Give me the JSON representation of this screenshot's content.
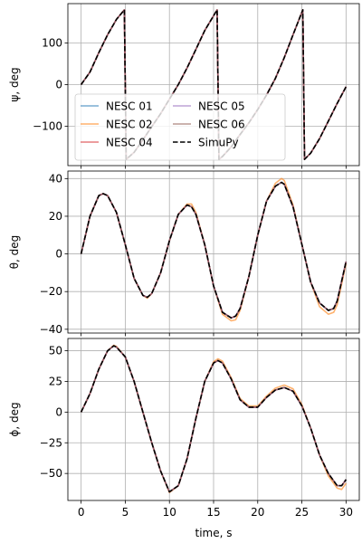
{
  "chart_data": {
    "type": "line",
    "xlabel": "time, s",
    "xlim": [
      -1.5,
      31.5
    ],
    "xticks": [
      0,
      5,
      10,
      15,
      20,
      25,
      30
    ],
    "xtick_labels": [
      "0",
      "5",
      "10",
      "15",
      "20",
      "25",
      "30"
    ],
    "grid": true,
    "legend": {
      "placement": "lower-left (top panel)",
      "columns": 2
    },
    "series_styles": [
      {
        "name": "NESC 01",
        "color": "#1f77b4",
        "dash": "solid",
        "alpha": 0.6
      },
      {
        "name": "NESC 02",
        "color": "#ff7f0e",
        "dash": "solid",
        "alpha": 0.6
      },
      {
        "name": "NESC 04",
        "color": "#d62728",
        "dash": "solid",
        "alpha": 0.6
      },
      {
        "name": "NESC 05",
        "color": "#9467bd",
        "dash": "solid",
        "alpha": 0.6
      },
      {
        "name": "NESC 06",
        "color": "#8c564b",
        "dash": "solid",
        "alpha": 0.6
      },
      {
        "name": "SimuPy",
        "color": "#000000",
        "dash": "dashed",
        "alpha": 1.0
      }
    ],
    "panels": [
      {
        "ylabel": "ψ, deg",
        "ylim": [
          -195,
          195
        ],
        "yticks": [
          -100,
          0,
          100
        ],
        "ytick_labels": [
          "−100",
          "0",
          "100"
        ],
        "x": [
          0,
          1,
          2,
          3,
          4,
          4.9,
          5.1,
          6,
          7,
          8,
          9,
          10,
          11,
          12,
          13,
          14,
          15.4,
          15.6,
          16,
          17,
          18,
          19,
          20,
          21,
          22,
          23,
          24,
          25.1,
          25.3,
          26,
          27,
          28,
          29,
          30
        ],
        "series": [
          {
            "name": "NESC 01",
            "values": [
              0,
              30,
              77,
              120,
              157,
              180,
              -180,
              -163,
              -133,
              -101,
              -70,
              -35,
              0,
              40,
              85,
              130,
              180,
              -180,
              -173,
              -150,
              -120,
              -92,
              -60,
              -25,
              15,
              65,
              120,
              180,
              -180,
              -165,
              -130,
              -88,
              -45,
              -5
            ]
          },
          {
            "name": "NESC 02",
            "values": [
              0,
              30,
              77,
              120,
              157,
              180,
              -180,
              -163,
              -133,
              -101,
              -70,
              -35,
              0,
              40,
              85,
              130,
              180,
              -180,
              -173,
              -150,
              -120,
              -92,
              -60,
              -25,
              15,
              65,
              120,
              180,
              -180,
              -165,
              -130,
              -88,
              -45,
              -5
            ]
          },
          {
            "name": "NESC 04",
            "values": [
              0,
              30,
              77,
              120,
              157,
              180,
              -180,
              -163,
              -133,
              -101,
              -70,
              -35,
              0,
              40,
              85,
              130,
              180,
              -180,
              -173,
              -150,
              -120,
              -92,
              -60,
              -25,
              15,
              65,
              120,
              180,
              -180,
              -165,
              -130,
              -88,
              -45,
              -5
            ]
          },
          {
            "name": "NESC 05",
            "values": [
              0,
              30,
              77,
              120,
              157,
              180,
              -180,
              -163,
              -133,
              -101,
              -70,
              -35,
              0,
              40,
              85,
              130,
              180,
              -180,
              -173,
              -150,
              -120,
              -92,
              -60,
              -25,
              15,
              65,
              120,
              180,
              -180,
              -165,
              -130,
              -88,
              -45,
              -5
            ]
          },
          {
            "name": "NESC 06",
            "values": [
              0,
              30,
              77,
              120,
              157,
              180,
              -180,
              -163,
              -133,
              -101,
              -70,
              -35,
              0,
              40,
              85,
              130,
              180,
              -180,
              -173,
              -150,
              -120,
              -92,
              -60,
              -25,
              15,
              65,
              120,
              180,
              -180,
              -165,
              -130,
              -88,
              -45,
              -5
            ]
          },
          {
            "name": "SimuPy",
            "values": [
              0,
              30,
              77,
              120,
              157,
              180,
              -180,
              -163,
              -133,
              -101,
              -70,
              -35,
              0,
              40,
              85,
              130,
              180,
              -180,
              -173,
              -150,
              -120,
              -92,
              -60,
              -25,
              15,
              65,
              120,
              180,
              -180,
              -165,
              -130,
              -88,
              -45,
              -5
            ]
          }
        ]
      },
      {
        "ylabel": "θ, deg",
        "ylim": [
          -42,
          44
        ],
        "yticks": [
          -40,
          -20,
          0,
          20,
          40
        ],
        "ytick_labels": [
          "−40",
          "−20",
          "0",
          "20",
          "40"
        ],
        "x": [
          0,
          1,
          2,
          2.5,
          3,
          4,
          5,
          6,
          7,
          7.5,
          8,
          9,
          10,
          11,
          12,
          12.5,
          13,
          14,
          15,
          16,
          17,
          17.5,
          18,
          19,
          20,
          21,
          22,
          22.7,
          23,
          24,
          25,
          26,
          27,
          28,
          28.6,
          29,
          30
        ],
        "series": [
          {
            "name": "NESC 01",
            "values": [
              0,
              20,
              31,
              32,
              31,
              22,
              5,
              -13,
              -22,
              -23,
              -21,
              -10,
              7,
              21,
              26,
              25,
              21,
              5,
              -17,
              -31,
              -34,
              -33,
              -29,
              -12,
              10,
              28,
              36,
              38,
              37,
              25,
              5,
              -15,
              -26,
              -30,
              -29,
              -25,
              -4
            ]
          },
          {
            "name": "NESC 02",
            "values": [
              0,
              20,
              31,
              32,
              31,
              22,
              5,
              -13,
              -22,
              -23.5,
              -21,
              -10,
              7,
              21,
              26.5,
              26.5,
              22,
              5,
              -17,
              -32,
              -35.5,
              -35,
              -30,
              -12,
              10,
              28,
              37.5,
              40,
              39,
              26,
              5,
              -15,
              -28,
              -32,
              -31,
              -27,
              -5
            ]
          },
          {
            "name": "NESC 04",
            "values": [
              0,
              20,
              31,
              32,
              31,
              22,
              5,
              -13,
              -22,
              -23,
              -21,
              -10,
              7,
              21,
              26,
              25,
              21,
              5,
              -17,
              -31,
              -34,
              -33,
              -29,
              -12,
              10,
              28,
              36,
              38,
              37,
              25,
              5,
              -15,
              -26,
              -30,
              -29,
              -25,
              -4
            ]
          },
          {
            "name": "NESC 05",
            "values": [
              0,
              20,
              31,
              32,
              31,
              22,
              5,
              -13,
              -22,
              -23,
              -21,
              -10,
              7,
              21,
              26,
              25,
              21,
              5,
              -17,
              -31,
              -34,
              -33,
              -29,
              -12,
              10,
              28,
              36,
              38,
              37,
              25,
              5,
              -15,
              -26,
              -30,
              -29,
              -25,
              -4
            ]
          },
          {
            "name": "NESC 06",
            "values": [
              0,
              20,
              31,
              32,
              31,
              22,
              5,
              -13,
              -22,
              -23,
              -21,
              -10,
              7,
              21,
              26,
              25,
              21,
              5,
              -17,
              -31,
              -34,
              -33,
              -29,
              -12,
              10,
              28,
              36,
              38,
              37,
              25,
              5,
              -15,
              -26,
              -30,
              -29,
              -25,
              -4
            ]
          },
          {
            "name": "SimuPy",
            "values": [
              0,
              20,
              31,
              32,
              31,
              22,
              5,
              -13,
              -22,
              -23,
              -21,
              -10,
              7,
              21,
              26,
              25,
              21,
              5,
              -17,
              -31,
              -34,
              -33,
              -29,
              -12,
              10,
              28,
              36,
              38,
              37,
              25,
              5,
              -15,
              -26,
              -30,
              -29,
              -25,
              -4
            ]
          }
        ]
      },
      {
        "ylabel": "ϕ, deg",
        "ylim": [
          -72,
          60
        ],
        "yticks": [
          -50,
          -25,
          0,
          25,
          50
        ],
        "ytick_labels": [
          "−50",
          "−25",
          "0",
          "25",
          "50"
        ],
        "x": [
          0,
          1,
          2,
          3,
          3.7,
          4,
          5,
          6,
          7,
          8,
          9,
          10,
          11,
          12,
          13,
          14,
          15,
          15.5,
          16,
          17,
          18,
          19,
          20,
          21,
          22,
          23,
          24,
          25,
          26,
          27,
          28,
          29,
          29.5,
          30
        ],
        "series": [
          {
            "name": "NESC 01",
            "values": [
              0,
              15,
              35,
              50,
              54,
              53,
              45,
              25,
              0,
              -25,
              -48,
              -65,
              -60,
              -38,
              -5,
              25,
              40,
              42,
              40,
              27,
              10,
              4,
              4,
              12,
              18,
              20,
              17,
              5,
              -13,
              -35,
              -50,
              -60,
              -60,
              -55
            ]
          },
          {
            "name": "NESC 02",
            "values": [
              0,
              15,
              35,
              50,
              54.5,
              53.5,
              45,
              25,
              0,
              -25,
              -48,
              -65.5,
              -60,
              -38,
              -5,
              25,
              41,
              43.5,
              41.5,
              28,
              11,
              5,
              5,
              13,
              19.5,
              22,
              19,
              6,
              -13,
              -35,
              -52,
              -62,
              -63,
              -58
            ]
          },
          {
            "name": "NESC 04",
            "values": [
              0,
              15,
              35,
              50,
              54,
              53,
              45,
              25,
              0,
              -25,
              -48,
              -65,
              -60,
              -38,
              -5,
              25,
              40,
              42,
              40,
              27,
              10,
              4,
              4,
              12,
              18,
              20,
              17,
              5,
              -13,
              -35,
              -50,
              -60,
              -60,
              -55
            ]
          },
          {
            "name": "NESC 05",
            "values": [
              0,
              15,
              35,
              50,
              54,
              53,
              45,
              25,
              0,
              -25,
              -48,
              -65,
              -60,
              -38,
              -5,
              25,
              40,
              42,
              40,
              27,
              10,
              4,
              4,
              12,
              18,
              20,
              17,
              5,
              -13,
              -35,
              -50,
              -60,
              -60,
              -55
            ]
          },
          {
            "name": "NESC 06",
            "values": [
              0,
              15,
              35,
              50,
              54,
              53,
              45,
              25,
              0,
              -25,
              -48,
              -65,
              -60,
              -38,
              -5,
              25,
              40,
              42,
              40,
              27,
              10,
              4,
              4,
              12,
              18,
              20,
              17,
              5,
              -13,
              -35,
              -50,
              -60,
              -60,
              -55
            ]
          },
          {
            "name": "SimuPy",
            "values": [
              0,
              15,
              35,
              50,
              54,
              53,
              45,
              25,
              0,
              -25,
              -48,
              -65,
              -60,
              -38,
              -5,
              25,
              40,
              42,
              40,
              27,
              10,
              4,
              4,
              12,
              18,
              20,
              17,
              5,
              -13,
              -35,
              -50,
              -60,
              -60,
              -55
            ]
          }
        ]
      }
    ]
  }
}
